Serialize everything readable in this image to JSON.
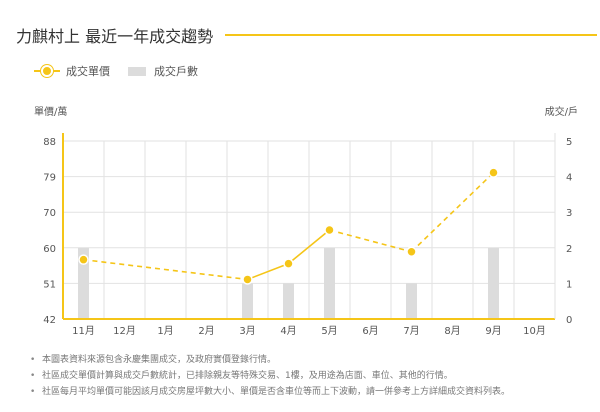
{
  "header": {
    "title": "力麒村上 最近一年成交趨勢"
  },
  "colors": {
    "accent": "#f5c518",
    "bar": "#dcdcdc",
    "grid": "#e2e2e2"
  },
  "chart_data": {
    "type": "bar+line",
    "categories": [
      "11月",
      "12月",
      "1月",
      "2月",
      "3月",
      "4月",
      "5月",
      "6月",
      "7月",
      "8月",
      "9月",
      "10月"
    ],
    "series": [
      {
        "name": "成交單價",
        "type": "line",
        "axis": "left",
        "values": [
          57,
          null,
          null,
          null,
          52,
          56,
          65,
          null,
          59,
          null,
          80,
          null
        ]
      },
      {
        "name": "成交戶數",
        "type": "bar",
        "axis": "right",
        "values": [
          2,
          0,
          0,
          0,
          1,
          1,
          2,
          0,
          1,
          0,
          2,
          0
        ]
      }
    ],
    "ylabel_left": "單價/萬",
    "ylabel_right": "成交/戶",
    "yticks_left": [
      42,
      51,
      60,
      70,
      79,
      88
    ],
    "yticks_right": [
      0,
      1,
      2,
      3,
      4,
      5
    ],
    "ylim_left": [
      42,
      88
    ],
    "ylim_right": [
      0,
      5
    ],
    "grid": true,
    "legend_position": "top-left"
  },
  "notes": [
    "本圖表資料來源包含永慶集團成交，及政府實價登錄行情。",
    "社區成交單價計算與成交戶數統計，已排除親友等特殊交易、1樓，及用途為店面、車位、其他的行情。",
    "社區每月平均單價可能因該月成交房屋坪數大小、單價是否含車位等而上下波動，請一併參考上方詳細成交資料列表。"
  ]
}
